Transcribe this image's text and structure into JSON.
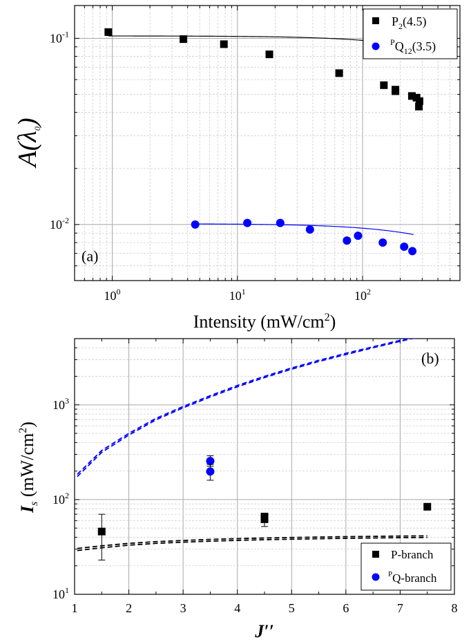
{
  "chart_data": [
    {
      "type": "scatter",
      "panel_label": "(a)",
      "xlabel_main": "Intensity (mW/cm",
      "xlabel_sup": "2",
      "xlabel_close": ")",
      "ylabel_main": "A(λ",
      "ylabel_sub": "0",
      "ylabel_close": ")",
      "xscale": "log",
      "yscale": "log",
      "xlim": [
        0.5,
        600
      ],
      "ylim": [
        0.005,
        0.15
      ],
      "grid": true,
      "legend_position": "top-right",
      "x_ticks": [
        {
          "value": 1,
          "base": "10",
          "exp": "0"
        },
        {
          "value": 10,
          "base": "10",
          "exp": "1"
        },
        {
          "value": 100,
          "base": "10",
          "exp": "2"
        }
      ],
      "y_ticks": [
        {
          "value": 0.1,
          "base": "10",
          "exp": "-1"
        },
        {
          "value": 0.01,
          "base": "10",
          "exp": "-2"
        }
      ],
      "series": [
        {
          "name_main": "P",
          "name_sub": "2",
          "name_rest": "(4.5)",
          "name_pre_sup": "",
          "marker": "square",
          "color": "#000000",
          "points": [
            [
              0.93,
              0.108
            ],
            [
              3.7,
              0.099
            ],
            [
              7.8,
              0.093
            ],
            [
              18,
              0.082
            ],
            [
              65,
              0.065
            ],
            [
              148,
              0.056
            ],
            [
              183,
              0.053
            ],
            [
              183,
              0.052
            ],
            [
              248,
              0.049
            ],
            [
              270,
              0.048
            ],
            [
              282,
              0.043
            ],
            [
              285,
              0.046
            ]
          ],
          "fit": {
            "a0": 0.103,
            "is": 1400,
            "p": 0.8
          }
        },
        {
          "name_main": "Q",
          "name_sub": "12",
          "name_rest": "(3.5)",
          "name_pre_sup": "P",
          "marker": "circle",
          "color": "#0000ff",
          "points": [
            [
              4.6,
              0.01
            ],
            [
              12,
              0.0102
            ],
            [
              22,
              0.0102
            ],
            [
              38,
              0.0094
            ],
            [
              75,
              0.0082
            ],
            [
              92,
              0.0087
            ],
            [
              145,
              0.008
            ],
            [
              215,
              0.0076
            ],
            [
              250,
              0.0072
            ]
          ],
          "fit": {
            "a0": 0.0101,
            "is": 1400,
            "p": 0.8,
            "xmin": 4.6,
            "xmax": 255
          }
        }
      ]
    },
    {
      "type": "scatter",
      "panel_label": "(b)",
      "xlabel": "J′′",
      "ylabel_main": "I",
      "ylabel_sub": "s",
      "ylabel_rest": " (mW/cm",
      "ylabel_sup": "2",
      "ylabel_close": ")",
      "xscale": "linear",
      "yscale": "log",
      "xlim": [
        1,
        8
      ],
      "ylim": [
        10,
        5000
      ],
      "grid": true,
      "legend_position": "bottom-right",
      "x_ticks": [
        "1",
        "2",
        "3",
        "4",
        "5",
        "6",
        "7",
        "8"
      ],
      "y_ticks": [
        {
          "value": 10,
          "base": "10",
          "exp": "1"
        },
        {
          "value": 100,
          "base": "10",
          "exp": "2"
        },
        {
          "value": 1000,
          "base": "10",
          "exp": "3"
        }
      ],
      "series": [
        {
          "name": "P-branch",
          "name_pre_sup": "",
          "marker": "square",
          "color": "#000000",
          "points": [
            [
              1.5,
              46,
              23,
              70
            ],
            [
              4.5,
              62,
              52,
              72
            ],
            [
              4.5,
              66,
              null,
              null
            ],
            [
              7.5,
              84,
              null,
              null
            ]
          ]
        },
        {
          "name": "Q-branch",
          "name_pre_sup": "P",
          "marker": "circle",
          "color": "#0000ff",
          "points": [
            [
              3.5,
              255,
              225,
              290
            ],
            [
              3.5,
              198,
              160,
              235
            ]
          ]
        }
      ],
      "theory_curves": [
        {
          "color": "#0000ff",
          "x": [
            1.05,
            1.5,
            2,
            2.5,
            3,
            3.5,
            4,
            4.5,
            5,
            5.5,
            6,
            6.5,
            7,
            7.5
          ],
          "y": [
            185,
            330,
            500,
            720,
            960,
            1250,
            1600,
            2000,
            2450,
            2950,
            3500,
            4100,
            4800,
            5600
          ]
        },
        {
          "color": "#0000ff",
          "x": [
            1.05,
            1.5,
            2,
            2.5,
            3,
            3.5,
            4,
            4.5,
            5,
            5.5,
            6,
            6.5,
            7,
            7.5
          ],
          "y": [
            175,
            315,
            480,
            695,
            930,
            1210,
            1550,
            1940,
            2380,
            2870,
            3400,
            4000,
            4680,
            5450
          ]
        },
        {
          "color": "#000000",
          "x": [
            1.05,
            1.5,
            2,
            2.5,
            3,
            3.5,
            4,
            4.5,
            5,
            5.5,
            6,
            6.5,
            7,
            7.5
          ],
          "y": [
            30.5,
            32.5,
            34.5,
            36,
            37,
            38,
            38.7,
            39.3,
            39.8,
            40.2,
            40.6,
            40.9,
            41.2,
            41.4
          ]
        },
        {
          "color": "#000000",
          "x": [
            1.05,
            1.5,
            2,
            2.5,
            3,
            3.5,
            4,
            4.5,
            5,
            5.5,
            6,
            6.5,
            7,
            7.5
          ],
          "y": [
            29.0,
            31.0,
            33.0,
            34.5,
            35.5,
            36.4,
            37.1,
            37.7,
            38.2,
            38.6,
            39.0,
            39.3,
            39.6,
            39.8
          ]
        }
      ]
    }
  ]
}
